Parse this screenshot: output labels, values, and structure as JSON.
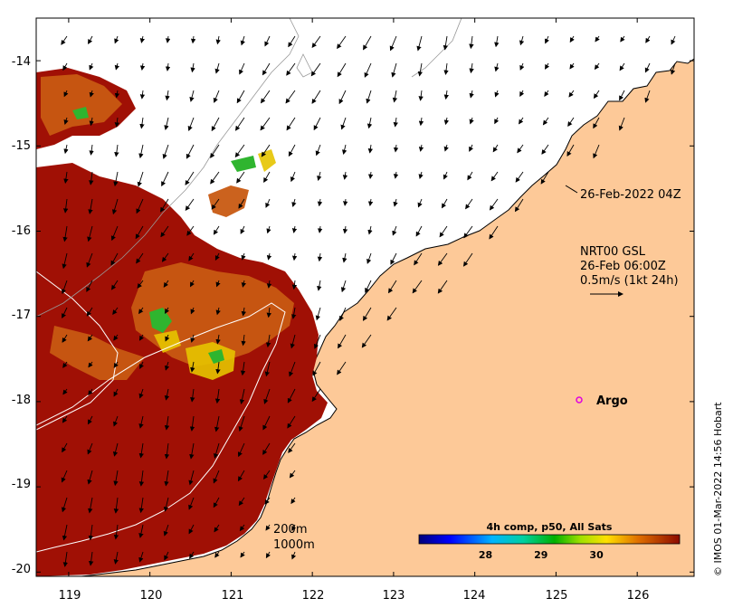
{
  "map": {
    "lon_ticks": [
      "119",
      "120",
      "121",
      "122",
      "123",
      "124",
      "125",
      "126"
    ],
    "lat_ticks": [
      "-14",
      "-15",
      "-16",
      "-17",
      "-18",
      "-19",
      "-20"
    ],
    "lon_range": [
      118.6,
      126.7
    ],
    "lat_range": [
      -20.05,
      -13.5
    ]
  },
  "annotations": {
    "coast_date": "26-Feb-2022 04Z",
    "current_line1": "NRT00 GSL",
    "current_line2": "26-Feb 06:00Z",
    "current_line3": "0.5m/s (1kt 24h)",
    "argo_label": "Argo",
    "contour_200": "200m",
    "contour_1000": "1000m",
    "credit": "© IMOS 01-Mar-2022 14:56 Hobart"
  },
  "colorbar": {
    "title": "4h comp, p50, All Sats",
    "ticks": [
      "28",
      "29",
      "30"
    ],
    "range": [
      26.8,
      31.5
    ]
  },
  "colors": {
    "land": "#fdc998",
    "sst_hot": "#a01005",
    "sst_orange": "#c85a12",
    "sst_yellow": "#e6d000",
    "sst_green": "#2fb52f",
    "argo": "#e000e0"
  }
}
